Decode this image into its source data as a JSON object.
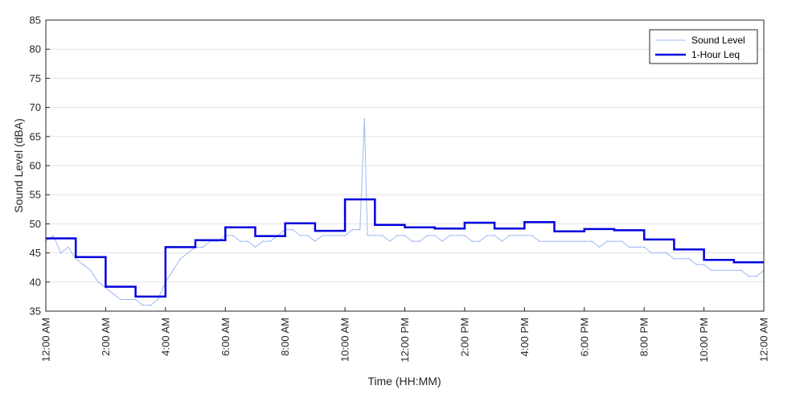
{
  "chart_data": {
    "type": "line",
    "xlabel": "Time (HH:MM)",
    "ylabel": "Sound Level (dBA)",
    "ylim": [
      35,
      85
    ],
    "y_ticks": [
      35,
      40,
      45,
      50,
      55,
      60,
      65,
      70,
      75,
      80,
      85
    ],
    "xlim_hours": [
      0,
      24
    ],
    "x_ticks": [
      {
        "hour": 0,
        "label": "12:00 AM"
      },
      {
        "hour": 2,
        "label": "2:00 AM"
      },
      {
        "hour": 4,
        "label": "4:00 AM"
      },
      {
        "hour": 6,
        "label": "6:00 AM"
      },
      {
        "hour": 8,
        "label": "8:00 AM"
      },
      {
        "hour": 10,
        "label": "10:00 AM"
      },
      {
        "hour": 12,
        "label": "12:00 PM"
      },
      {
        "hour": 14,
        "label": "2:00 PM"
      },
      {
        "hour": 16,
        "label": "4:00 PM"
      },
      {
        "hour": 18,
        "label": "6:00 PM"
      },
      {
        "hour": 20,
        "label": "8:00 PM"
      },
      {
        "hour": 22,
        "label": "10:00 PM"
      },
      {
        "hour": 24,
        "label": "12:00 AM"
      }
    ],
    "grid": "horizontal",
    "legend_position": "top-right",
    "series": [
      {
        "name": "Sound Level",
        "style": "thin-line",
        "color": "#9DB9F2",
        "points": [
          {
            "hour": 0.0,
            "value": 47
          },
          {
            "hour": 0.25,
            "value": 48
          },
          {
            "hour": 0.5,
            "value": 45
          },
          {
            "hour": 0.75,
            "value": 46
          },
          {
            "hour": 1.0,
            "value": 44
          },
          {
            "hour": 1.25,
            "value": 43
          },
          {
            "hour": 1.5,
            "value": 42
          },
          {
            "hour": 1.75,
            "value": 40
          },
          {
            "hour": 2.0,
            "value": 39
          },
          {
            "hour": 2.25,
            "value": 38
          },
          {
            "hour": 2.5,
            "value": 37
          },
          {
            "hour": 2.75,
            "value": 37
          },
          {
            "hour": 3.0,
            "value": 37
          },
          {
            "hour": 3.25,
            "value": 36
          },
          {
            "hour": 3.5,
            "value": 36
          },
          {
            "hour": 3.75,
            "value": 37
          },
          {
            "hour": 4.0,
            "value": 40
          },
          {
            "hour": 4.25,
            "value": 42
          },
          {
            "hour": 4.5,
            "value": 44
          },
          {
            "hour": 4.75,
            "value": 45
          },
          {
            "hour": 5.0,
            "value": 46
          },
          {
            "hour": 5.25,
            "value": 46
          },
          {
            "hour": 5.5,
            "value": 47
          },
          {
            "hour": 5.75,
            "value": 47
          },
          {
            "hour": 6.0,
            "value": 48
          },
          {
            "hour": 6.25,
            "value": 48
          },
          {
            "hour": 6.5,
            "value": 47
          },
          {
            "hour": 6.75,
            "value": 47
          },
          {
            "hour": 7.0,
            "value": 46
          },
          {
            "hour": 7.25,
            "value": 47
          },
          {
            "hour": 7.5,
            "value": 47
          },
          {
            "hour": 7.75,
            "value": 48
          },
          {
            "hour": 8.0,
            "value": 49
          },
          {
            "hour": 8.25,
            "value": 49
          },
          {
            "hour": 8.5,
            "value": 48
          },
          {
            "hour": 8.75,
            "value": 48
          },
          {
            "hour": 9.0,
            "value": 47
          },
          {
            "hour": 9.25,
            "value": 48
          },
          {
            "hour": 9.5,
            "value": 48
          },
          {
            "hour": 9.75,
            "value": 48
          },
          {
            "hour": 10.0,
            "value": 48
          },
          {
            "hour": 10.25,
            "value": 49
          },
          {
            "hour": 10.5,
            "value": 49
          },
          {
            "hour": 10.65,
            "value": 68
          },
          {
            "hour": 10.75,
            "value": 48
          },
          {
            "hour": 11.0,
            "value": 48
          },
          {
            "hour": 11.25,
            "value": 48
          },
          {
            "hour": 11.5,
            "value": 47
          },
          {
            "hour": 11.75,
            "value": 48
          },
          {
            "hour": 12.0,
            "value": 48
          },
          {
            "hour": 12.25,
            "value": 47
          },
          {
            "hour": 12.5,
            "value": 47
          },
          {
            "hour": 12.75,
            "value": 48
          },
          {
            "hour": 13.0,
            "value": 48
          },
          {
            "hour": 13.25,
            "value": 47
          },
          {
            "hour": 13.5,
            "value": 48
          },
          {
            "hour": 13.75,
            "value": 48
          },
          {
            "hour": 14.0,
            "value": 48
          },
          {
            "hour": 14.25,
            "value": 47
          },
          {
            "hour": 14.5,
            "value": 47
          },
          {
            "hour": 14.75,
            "value": 48
          },
          {
            "hour": 15.0,
            "value": 48
          },
          {
            "hour": 15.25,
            "value": 47
          },
          {
            "hour": 15.5,
            "value": 48
          },
          {
            "hour": 15.75,
            "value": 48
          },
          {
            "hour": 16.0,
            "value": 48
          },
          {
            "hour": 16.25,
            "value": 48
          },
          {
            "hour": 16.5,
            "value": 47
          },
          {
            "hour": 16.75,
            "value": 47
          },
          {
            "hour": 17.0,
            "value": 47
          },
          {
            "hour": 17.25,
            "value": 47
          },
          {
            "hour": 17.5,
            "value": 47
          },
          {
            "hour": 17.75,
            "value": 47
          },
          {
            "hour": 18.0,
            "value": 47
          },
          {
            "hour": 18.25,
            "value": 47
          },
          {
            "hour": 18.5,
            "value": 46
          },
          {
            "hour": 18.75,
            "value": 47
          },
          {
            "hour": 19.0,
            "value": 47
          },
          {
            "hour": 19.25,
            "value": 47
          },
          {
            "hour": 19.5,
            "value": 46
          },
          {
            "hour": 19.75,
            "value": 46
          },
          {
            "hour": 20.0,
            "value": 46
          },
          {
            "hour": 20.25,
            "value": 45
          },
          {
            "hour": 20.5,
            "value": 45
          },
          {
            "hour": 20.75,
            "value": 45
          },
          {
            "hour": 21.0,
            "value": 44
          },
          {
            "hour": 21.25,
            "value": 44
          },
          {
            "hour": 21.5,
            "value": 44
          },
          {
            "hour": 21.75,
            "value": 43
          },
          {
            "hour": 22.0,
            "value": 43
          },
          {
            "hour": 22.25,
            "value": 42
          },
          {
            "hour": 22.5,
            "value": 42
          },
          {
            "hour": 22.75,
            "value": 42
          },
          {
            "hour": 23.0,
            "value": 42
          },
          {
            "hour": 23.25,
            "value": 42
          },
          {
            "hour": 23.5,
            "value": 41
          },
          {
            "hour": 23.75,
            "value": 41
          },
          {
            "hour": 24.0,
            "value": 42
          }
        ]
      },
      {
        "name": "1-Hour Leq",
        "style": "step",
        "color": "#0000DD",
        "hours": [
          0,
          1,
          2,
          3,
          4,
          5,
          6,
          7,
          8,
          9,
          10,
          11,
          12,
          13,
          14,
          15,
          16,
          17,
          18,
          19,
          20,
          21,
          22,
          23
        ],
        "values": [
          47.5,
          44.3,
          39.2,
          37.5,
          46.0,
          47.2,
          49.4,
          47.9,
          50.1,
          48.8,
          54.2,
          49.8,
          49.4,
          49.2,
          50.2,
          49.2,
          50.3,
          48.7,
          49.1,
          48.9,
          47.3,
          45.6,
          43.8,
          43.4
        ]
      }
    ]
  }
}
